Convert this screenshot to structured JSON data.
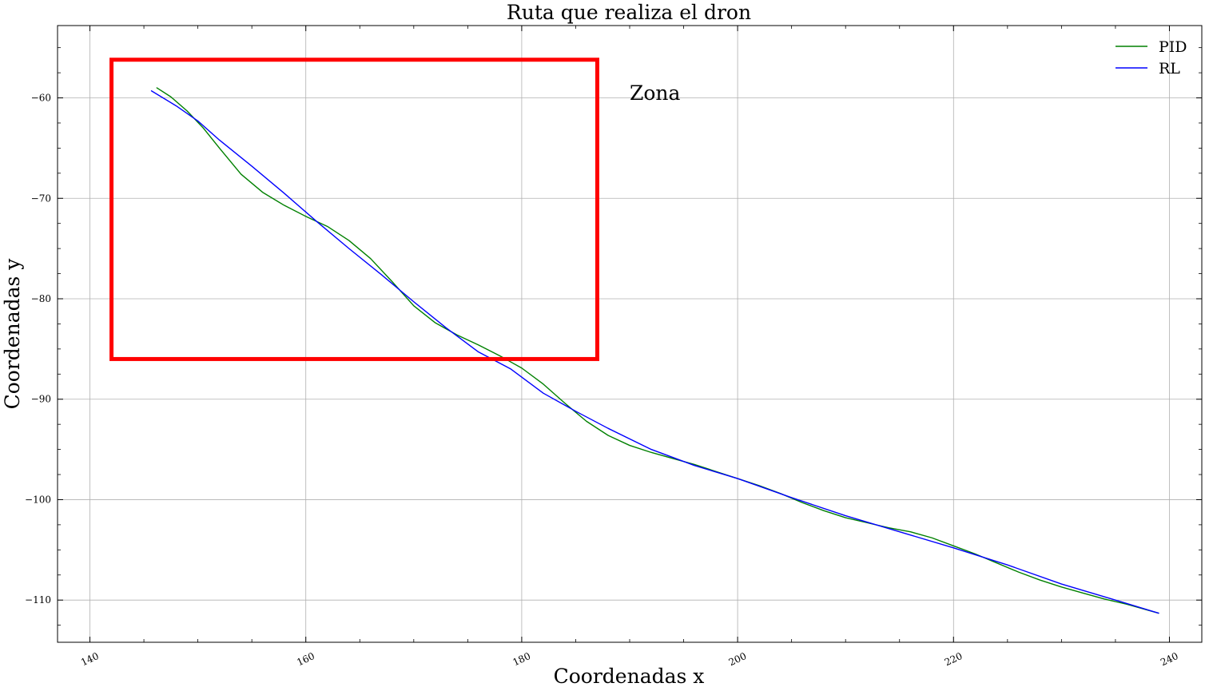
{
  "chart_data": {
    "type": "line",
    "title": "Ruta que realiza el dron",
    "xlabel": "Coordenadas x",
    "ylabel": "Coordenadas y",
    "xlim": [
      137,
      243
    ],
    "ylim": [
      -114.2,
      -52.8
    ],
    "xticks": [
      140,
      160,
      180,
      200,
      220,
      240
    ],
    "yticks": [
      -60,
      -70,
      -80,
      -90,
      -100,
      -110
    ],
    "xtick_labels": [
      "140",
      "160",
      "180",
      "200",
      "220",
      "240"
    ],
    "ytick_labels": [
      "−60",
      "−70",
      "−80",
      "−90",
      "−100",
      "−110"
    ],
    "grid": true,
    "legend_position": "top-right",
    "series": [
      {
        "name": "PID",
        "color": "#008000",
        "x": [
          146.2,
          147.5,
          149.0,
          150.5,
          152.0,
          154.0,
          156.0,
          158.0,
          160.0,
          162.0,
          164.0,
          166.0,
          168.0,
          170.0,
          172.0,
          174.0,
          176.0,
          178.0,
          180.0,
          182.0,
          184.0,
          186.0,
          188.0,
          190.0,
          192.0,
          194.0,
          196.0,
          198.0,
          200.0,
          202.0,
          204.0,
          206.0,
          208.0,
          210.0,
          212.0,
          214.0,
          216.0,
          218.0,
          220.0,
          222.0,
          224.0,
          226.0,
          228.0,
          230.0,
          232.0,
          234.0,
          236.0,
          238.0,
          239.0
        ],
        "y": [
          -59.0,
          -59.9,
          -61.3,
          -63.0,
          -65.0,
          -67.6,
          -69.4,
          -70.7,
          -71.8,
          -72.8,
          -74.2,
          -76.0,
          -78.3,
          -80.7,
          -82.4,
          -83.6,
          -84.6,
          -85.7,
          -86.9,
          -88.5,
          -90.4,
          -92.2,
          -93.6,
          -94.6,
          -95.3,
          -95.9,
          -96.5,
          -97.2,
          -97.9,
          -98.6,
          -99.4,
          -100.3,
          -101.1,
          -101.8,
          -102.3,
          -102.8,
          -103.2,
          -103.8,
          -104.6,
          -105.4,
          -106.3,
          -107.2,
          -108.0,
          -108.7,
          -109.3,
          -109.9,
          -110.4,
          -111.0,
          -111.3
        ]
      },
      {
        "name": "RL",
        "color": "#0000ff",
        "x": [
          145.7,
          148.0,
          150.0,
          152.0,
          155.0,
          158.0,
          161.0,
          164.0,
          167.0,
          170.0,
          173.0,
          176.0,
          179.0,
          182.0,
          185.0,
          188.0,
          192.0,
          196.0,
          200.0,
          205.0,
          210.0,
          215.0,
          220.0,
          225.0,
          230.0,
          235.0,
          239.0
        ],
        "y": [
          -59.3,
          -60.8,
          -62.3,
          -64.2,
          -66.8,
          -69.5,
          -72.3,
          -75.0,
          -77.6,
          -80.3,
          -82.9,
          -85.3,
          -87.0,
          -89.4,
          -91.2,
          -92.9,
          -95.0,
          -96.6,
          -97.9,
          -99.8,
          -101.6,
          -103.2,
          -104.8,
          -106.5,
          -108.4,
          -110.0,
          -111.3
        ]
      }
    ],
    "annotations": [
      {
        "type": "rectangle",
        "color": "#ff0000",
        "x0": 142,
        "x1": 187,
        "y0": -86,
        "y1": -56.2
      },
      {
        "type": "text",
        "text": "Zona",
        "x": 190,
        "y": -60.2
      }
    ]
  }
}
